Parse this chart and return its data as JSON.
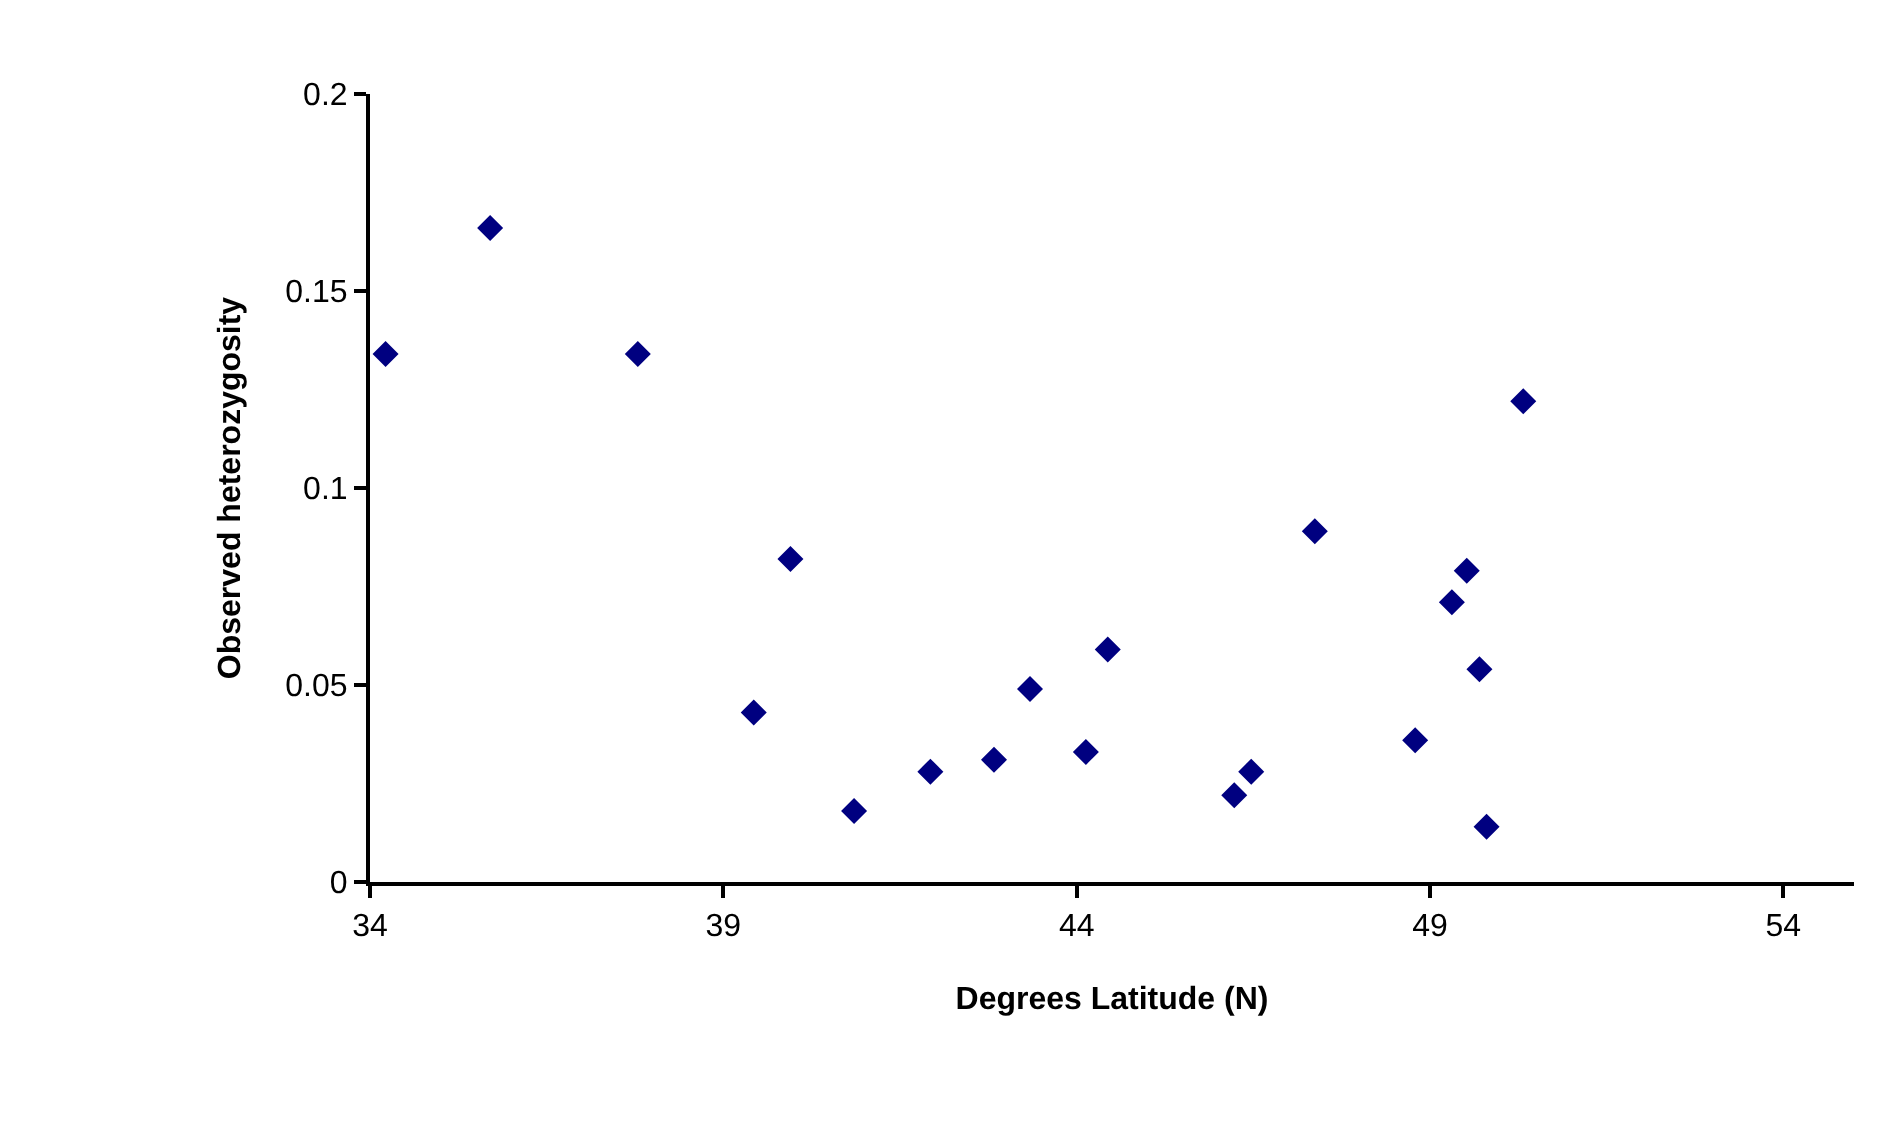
{
  "chart_data": {
    "type": "scatter",
    "xlabel": "Degrees Latitude (N)",
    "ylabel": "Observed heterozygosity",
    "x": [
      34.22,
      35.7,
      37.79,
      39.43,
      39.95,
      40.85,
      41.93,
      42.83,
      43.34,
      44.13,
      44.44,
      46.23,
      46.47,
      47.37,
      48.79,
      49.31,
      49.52,
      49.7,
      49.8,
      50.32
    ],
    "series": [
      {
        "color": "#000080",
        "values": [
          0.134,
          0.166,
          0.134,
          0.043,
          0.082,
          0.018,
          0.028,
          0.031,
          0.049,
          0.033,
          0.059,
          0.022,
          0.028,
          0.089,
          0.036,
          0.071,
          0.079,
          0.054,
          0.014,
          0.122
        ]
      }
    ],
    "xlim": [
      34,
      55
    ],
    "xticks": [
      34,
      39,
      44,
      49,
      54
    ],
    "ylim": [
      0,
      0.2
    ],
    "yticks": [
      0,
      0.05,
      0.1,
      0.15,
      0.2
    ],
    "marker": "diamond",
    "grid": false
  }
}
